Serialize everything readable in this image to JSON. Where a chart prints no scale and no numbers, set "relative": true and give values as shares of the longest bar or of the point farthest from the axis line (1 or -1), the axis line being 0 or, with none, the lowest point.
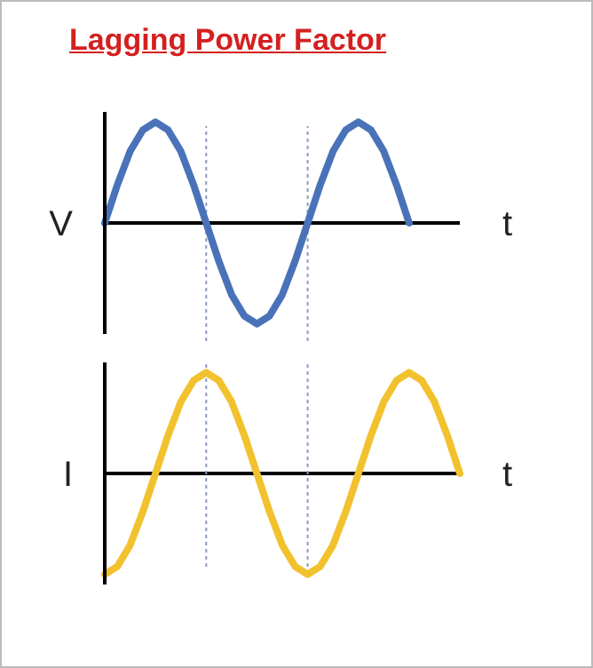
{
  "chart_data": [
    {
      "type": "line",
      "title": "Lagging Power Factor",
      "ylabel": "V",
      "xlabel": "t",
      "relative": true,
      "tick_labels": false,
      "categories": [
        null,
        null,
        null,
        null,
        null,
        null,
        null,
        null,
        null,
        null,
        null,
        null,
        null,
        null,
        null,
        null,
        null,
        null,
        null,
        null,
        null,
        null,
        null,
        null,
        null,
        null,
        null,
        null,
        null
      ],
      "series": [
        {
          "color": "#4a72b8",
          "values": [
            0,
            0.38,
            0.71,
            0.92,
            1,
            0.92,
            0.71,
            0.38,
            0,
            -0.38,
            -0.71,
            -0.92,
            -1,
            -0.92,
            -0.71,
            -0.38,
            0,
            0.38,
            0.71,
            0.92,
            1,
            0.92,
            0.71,
            0.38,
            0,
            null,
            null,
            null,
            null
          ]
        }
      ]
    },
    {
      "type": "line",
      "ylabel": "I",
      "xlabel": "t",
      "relative": true,
      "tick_labels": false,
      "categories": [
        null,
        null,
        null,
        null,
        null,
        null,
        null,
        null,
        null,
        null,
        null,
        null,
        null,
        null,
        null,
        null,
        null,
        null,
        null,
        null,
        null,
        null,
        null,
        null,
        null,
        null,
        null,
        null,
        null
      ],
      "series": [
        {
          "color": "#f2c12e",
          "values": [
            -1,
            -0.92,
            -0.71,
            -0.38,
            0,
            0.38,
            0.71,
            0.92,
            1,
            0.92,
            0.71,
            0.38,
            0,
            -0.38,
            -0.71,
            -0.92,
            -1,
            -0.92,
            -0.71,
            -0.38,
            0,
            0.38,
            0.71,
            0.92,
            1,
            0.92,
            0.71,
            0.38,
            0
          ]
        }
      ]
    }
  ]
}
